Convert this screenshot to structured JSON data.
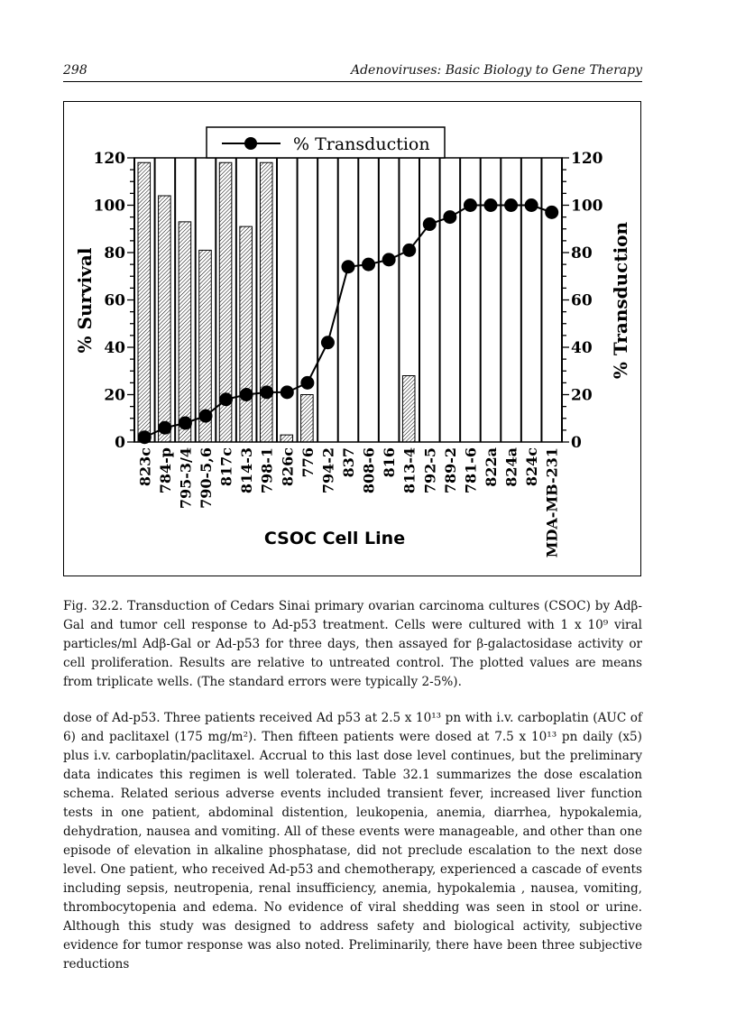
{
  "header": {
    "page_number": "298",
    "running_title": "Adenoviruses: Basic Biology to Gene Therapy"
  },
  "chart_data": {
    "type": "bar+line",
    "legend": "% Transduction",
    "legend_placement": "top-center",
    "xlabel": "CSOC Cell Line",
    "ylabel_left": "% Survival",
    "ylabel_right": "% Transduction",
    "ylim": [
      0,
      120
    ],
    "yticks": [
      0,
      20,
      40,
      60,
      80,
      100,
      120
    ],
    "categories": [
      "823c",
      "784-p",
      "795-3/4",
      "790-5,6",
      "817c",
      "814-3",
      "798-1",
      "826c",
      "776",
      "794-2",
      "837",
      "808-6",
      "816",
      "813-4",
      "792-5",
      "789-2",
      "781-6",
      "822a",
      "824a",
      "824c",
      "MDA-MB-231"
    ],
    "series": [
      {
        "axis": "left",
        "kind": "bar-hatched",
        "values": [
          118,
          104,
          93,
          81,
          118,
          91,
          118,
          3,
          20,
          0,
          0,
          0,
          0,
          28,
          0,
          0,
          0,
          0,
          0,
          0,
          0
        ]
      },
      {
        "name": "% Transduction",
        "axis": "right",
        "kind": "line-markers",
        "values": [
          2,
          6,
          8,
          11,
          18,
          20,
          21,
          21,
          25,
          42,
          74,
          75,
          77,
          81,
          92,
          95,
          100,
          100,
          100,
          100,
          97
        ]
      }
    ]
  },
  "caption": "Fig. 32.2. Transduction of Cedars Sinai primary ovarian carcinoma cultures (CSOC) by Adβ-Gal and tumor cell response to Ad-p53 treatment. Cells were cultured with 1 x 10⁹ viral particles/ml Adβ-Gal or Ad-p53 for three days, then assayed for β-galactosidase activity or cell proliferation. Results are relative to untreated control. The plotted values are means from triplicate wells. (The standard errors were typically 2-5%).",
  "body": "dose of Ad-p53. Three patients received Ad p53 at 2.5 x 10¹³ pn with i.v. carboplatin (AUC of 6) and paclitaxel (175 mg/m²). Then fifteen patients were dosed at 7.5 x 10¹³ pn daily (x5) plus i.v. carboplatin/paclitaxel. Accrual to this last dose level continues, but the preliminary data indicates this regimen is well tolerated. Table 32.1 summarizes the dose escalation schema. Related serious adverse events included transient fever, increased liver function tests in one patient, abdominal distention, leukopenia, anemia, diarrhea, hypokalemia, dehydration, nausea and vomiting. All of these events were manageable, and other than one episode of elevation in alkaline phosphatase, did not preclude escalation to the next dose level. One patient, who received Ad-p53 and chemotherapy, experienced a cascade of events including sepsis, neutropenia, renal insufficiency, anemia, hypokalemia , nausea, vomiting, thrombocytopenia and edema. No evidence of viral shedding was seen in stool or urine. Although this study was designed to address safety and biological activity, subjective evidence for tumor response was also noted. Preliminarily, there have been three subjective reductions"
}
